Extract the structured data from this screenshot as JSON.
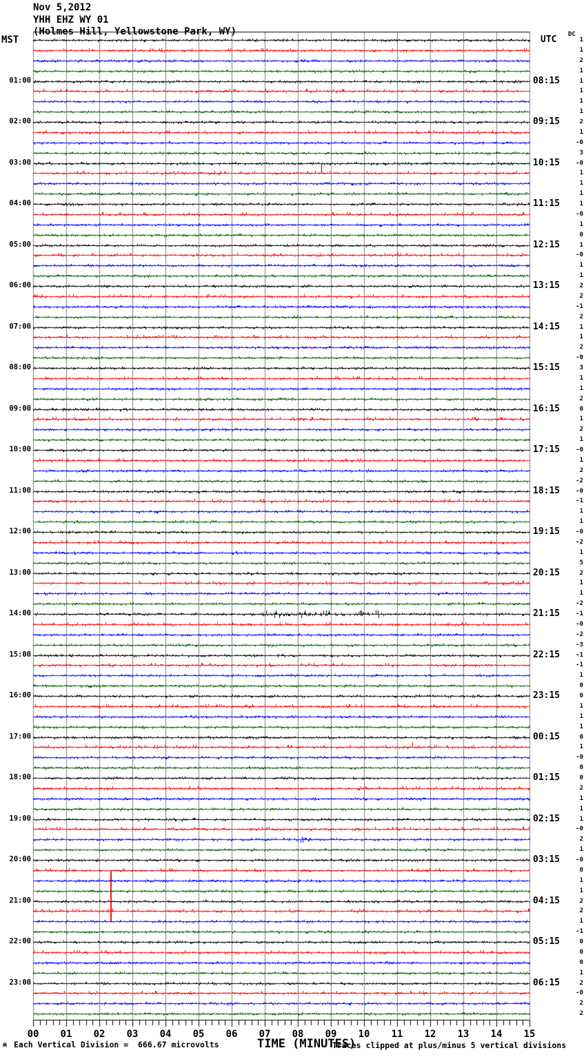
{
  "header": {
    "date": "Nov 5,2012",
    "station": "YHH EHZ WY 01",
    "location": "(Holmes Hill, Yellowstone Park, WY)"
  },
  "left_axis_label": "MST",
  "right_axis_label": "UTC",
  "dc_label": "DC",
  "x_axis": {
    "title": "TIME (MINUTES)",
    "tick_labels": [
      "00",
      "01",
      "02",
      "03",
      "04",
      "05",
      "06",
      "07",
      "08",
      "09",
      "10",
      "11",
      "12",
      "13",
      "14",
      "15"
    ]
  },
  "footer": {
    "scale_note": "Each Vertical Division =  666.67 microvolts",
    "clip_note": "Traces clipped at plus/minus 5 vertical divisions",
    "glyph": "ʍ"
  },
  "chart_data": {
    "type": "seismogram-helicorder",
    "station": "YHH EHZ WY 01",
    "station_name": "Holmes Hill, Yellowstone Park, WY",
    "date": "Nov 5,2012",
    "x_axis_minutes": [
      0,
      15
    ],
    "minutes_per_line": 15,
    "traces_per_hour": 4,
    "total_traces": 96,
    "trace_color_cycle": [
      "#000000",
      "#ff0000",
      "#0000ff",
      "#006400"
    ],
    "grid_color": "#808080",
    "background": "#ffffff",
    "mst_hour_labels": [
      "01:00",
      "02:00",
      "03:00",
      "04:00",
      "05:00",
      "06:00",
      "07:00",
      "08:00",
      "09:00",
      "10:00",
      "11:00",
      "12:00",
      "13:00",
      "14:00",
      "15:00",
      "16:00",
      "17:00",
      "18:00",
      "19:00",
      "20:00",
      "21:00",
      "22:00",
      "23:00"
    ],
    "utc_hour_labels": [
      "08:15",
      "09:15",
      "10:15",
      "11:15",
      "12:15",
      "13:15",
      "14:15",
      "15:15",
      "16:15",
      "17:15",
      "18:15",
      "19:15",
      "20:15",
      "21:15",
      "22:15",
      "23:15",
      "00:15",
      "01:15",
      "02:15",
      "03:15",
      "04:15",
      "05:15",
      "06:15"
    ],
    "dc_offsets": [
      "1",
      "1",
      "2",
      "1",
      "1",
      "1",
      "1",
      "1",
      "2",
      "1",
      "-0",
      "3",
      "-0",
      "1",
      "1",
      "1",
      "1",
      "-0",
      "1",
      "0",
      "1",
      "-0",
      "1",
      "1",
      "2",
      "2",
      "-1",
      "2",
      "1",
      "1",
      "2",
      "-0",
      "3",
      "1",
      "1",
      "2",
      "0",
      "1",
      "2",
      "1",
      "-0",
      "1",
      "2",
      "-2",
      "-0",
      "-1",
      "1",
      "1",
      "-0",
      "-2",
      "1",
      "5",
      "2",
      "1",
      "1",
      "-2",
      "-1",
      "-0",
      "-2",
      "-3",
      "-1",
      "-1",
      "1",
      "0",
      "0",
      "1",
      "1",
      "1",
      "0",
      "1",
      "-0",
      "0",
      "0",
      "2",
      "1",
      "1",
      "1",
      "-0",
      "2",
      "1",
      "-0",
      "0",
      "1",
      "1",
      "2",
      "2",
      "1",
      "-1",
      "0",
      "0",
      "0",
      "1",
      "2",
      "-0",
      "2",
      "2"
    ],
    "scale_microvolts_per_division": "666.67",
    "clip_divisions": 5,
    "events": [
      {
        "trace_index": 12,
        "color": "black",
        "mst_row": "03:00",
        "type": "spike_down",
        "minute": 8.7,
        "divisions": 1
      },
      {
        "trace_index": 56,
        "color": "black",
        "mst_row": "14:00",
        "type": "noise_burst",
        "minute_start": 6.9,
        "minute_end": 10.6,
        "amp": 2.4
      },
      {
        "trace_index": 69,
        "color": "red",
        "mst_row": "17:00",
        "type": "spike_up",
        "minute": 11.45,
        "divisions": 0.5
      },
      {
        "trace_index": 78,
        "color": "blue",
        "mst_row": "19:00",
        "type": "noise_burst",
        "minute_start": 7.3,
        "minute_end": 8.4,
        "amp": 1.7
      },
      {
        "trace_index": 81,
        "color": "red",
        "mst_row": "20:00",
        "type": "spike_down",
        "minute": 2.33,
        "divisions": 5
      }
    ]
  }
}
